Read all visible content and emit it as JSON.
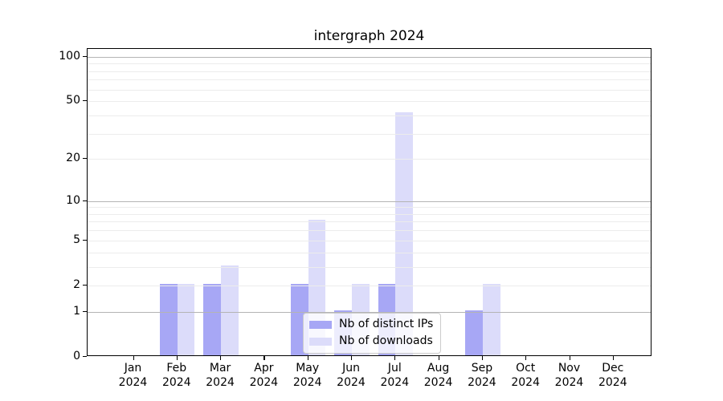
{
  "title": "intergraph 2024",
  "chart_data": {
    "type": "bar",
    "title": "intergraph 2024",
    "categories": [
      "Jan 2024",
      "Feb 2024",
      "Mar 2024",
      "Apr 2024",
      "May 2024",
      "Jun 2024",
      "Jul 2024",
      "Aug 2024",
      "Sep 2024",
      "Oct 2024",
      "Nov 2024",
      "Dec 2024"
    ],
    "series": [
      {
        "name": "Nb of distinct IPs",
        "color": "#a7a7f5",
        "values": [
          0,
          2,
          2,
          0,
          2,
          1,
          2,
          0,
          1,
          0,
          0,
          0
        ]
      },
      {
        "name": "Nb of downloads",
        "color": "#dcdcfa",
        "values": [
          0,
          2,
          3,
          0,
          7,
          2,
          41,
          0,
          2,
          0,
          0,
          0
        ]
      }
    ],
    "y_ticks": [
      0,
      1,
      2,
      5,
      10,
      20,
      50,
      100
    ],
    "y_scale": "log1p",
    "ylim": [
      0,
      113
    ],
    "xlabel": "",
    "ylabel": "",
    "grid": true,
    "legend_position": "lower center",
    "colors": {
      "grid_minor": "#ececec",
      "grid_major": "#b4b4b4",
      "axis": "#000000",
      "background": "#ffffff"
    }
  }
}
